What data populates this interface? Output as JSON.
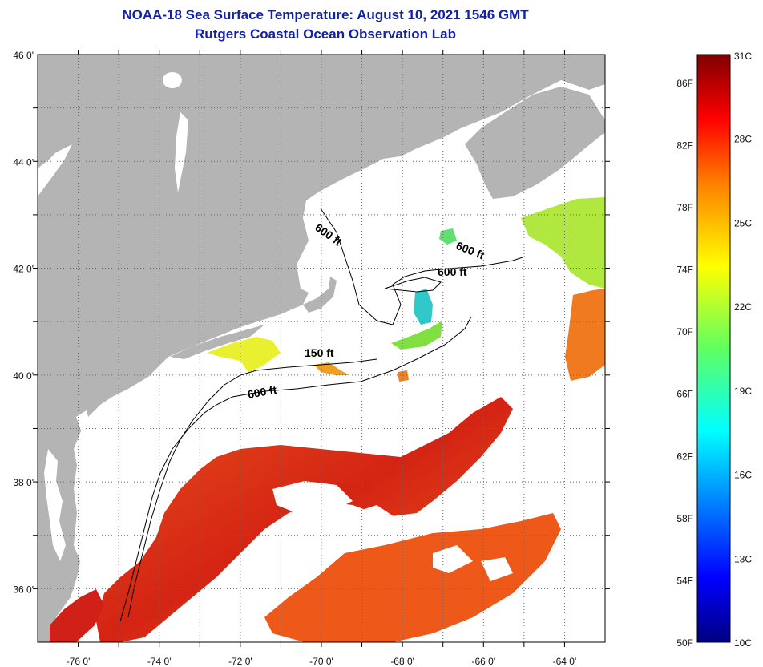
{
  "title": "NOAA-18 Sea Surface Temperature:  August 10, 2021 1546 GMT",
  "subtitle": "Rutgers Coastal Ocean Observation Lab",
  "map": {
    "lon_range": [
      -77,
      -63
    ],
    "lat_range": [
      35,
      46
    ],
    "lon_ticks": [
      "-76 0'",
      "-74 0'",
      "-72 0'",
      "-70 0'",
      "-68 0'",
      "-66 0'",
      "-64 0'"
    ],
    "lat_ticks": [
      "46 0'",
      "44 0'",
      "42 0'",
      "40 0'",
      "38 0'",
      "36 0'"
    ],
    "contour_labels": [
      "600 ft",
      "600 ft",
      "600 ft",
      "150 ft",
      "600 ft"
    ],
    "colors": {
      "land": "#b4b4b4",
      "cloud": "#ffffff",
      "grid": "#555555"
    }
  },
  "colorbar": {
    "celsius_range": [
      10,
      31
    ],
    "fahrenheit_labels": [
      "86F",
      "82F",
      "78F",
      "74F",
      "70F",
      "66F",
      "62F",
      "58F",
      "54F",
      "50F"
    ],
    "celsius_labels": [
      "31C",
      "28C",
      "25C",
      "22C",
      "19C",
      "16C",
      "13C",
      "10C"
    ]
  }
}
